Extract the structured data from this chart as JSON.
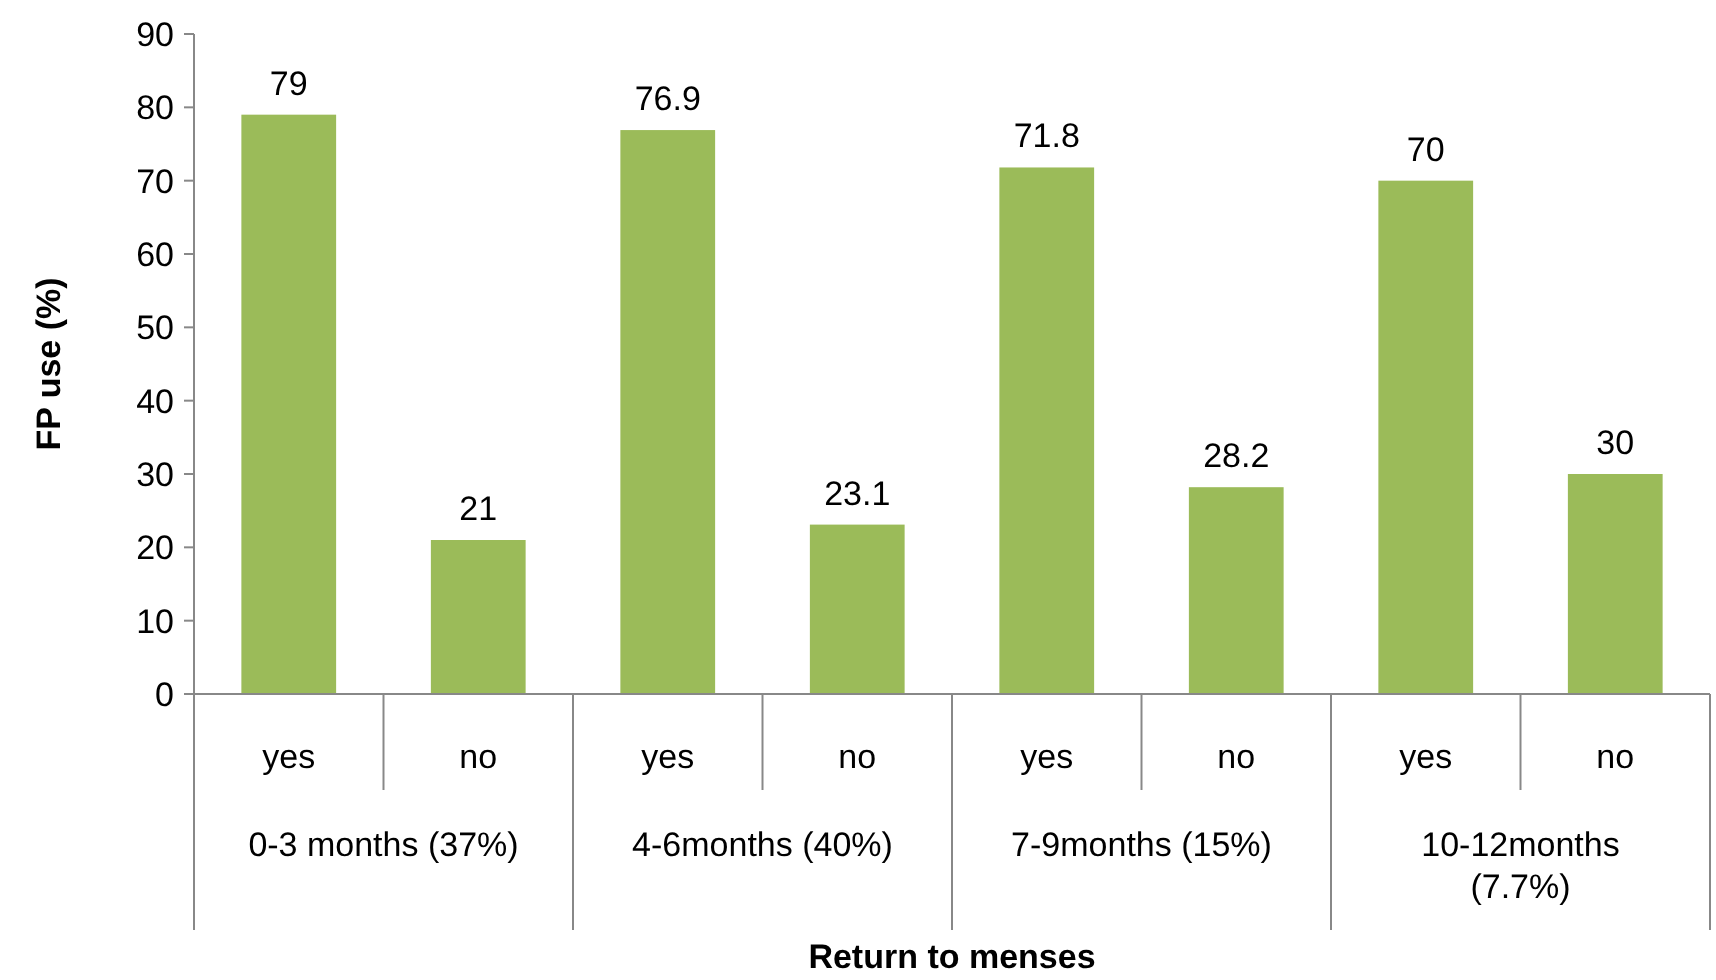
{
  "chart_data": {
    "type": "bar",
    "xlabel": "Return to menses",
    "ylabel": "FP use (%)",
    "categories": [
      "yes",
      "no",
      "yes",
      "no",
      "yes",
      "no",
      "yes",
      "no"
    ],
    "values": [
      79,
      21,
      76.9,
      23.1,
      71.8,
      28.2,
      70,
      30
    ],
    "color": "#9bbb59",
    "ylim": [
      0,
      90
    ],
    "yticks": [
      0,
      10,
      20,
      30,
      40,
      50,
      60,
      70,
      80,
      90
    ],
    "data_labels": true,
    "grid": false,
    "annotations": [
      "0-3 months (37%)",
      "4-6months (40%)",
      "7-9months (15%)",
      "10-12months (7.7%)"
    ]
  }
}
